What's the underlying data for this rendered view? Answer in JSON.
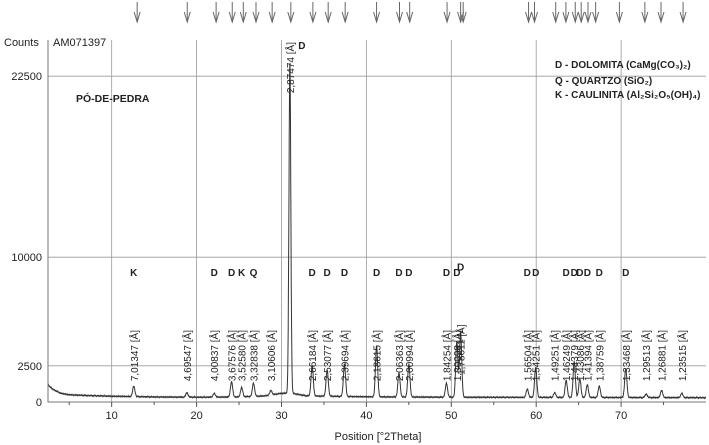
{
  "chart_data": {
    "type": "line",
    "title": "PÓ-DE-PEDRA",
    "sample_id": "AM071397",
    "y_axis_label": "Counts",
    "x_axis_label": "Position [°2Theta]",
    "xlim": [
      2.5,
      80
    ],
    "ylim": [
      0,
      25000
    ],
    "y_ticks": [
      0,
      2500,
      10000,
      22500
    ],
    "x_ticks": [
      10,
      20,
      30,
      40,
      50,
      60,
      70
    ],
    "legend": [
      {
        "code": "D",
        "text": "D - DOLOMITA (CaMg(CO₃)₂)"
      },
      {
        "code": "Q",
        "text": "Q - QUARTZO (SiO₂)"
      },
      {
        "code": "K",
        "text": "K - CAULINITA (Al₂Si₂O₅(OH)₄)"
      }
    ],
    "reference_markers": [
      13.0,
      18.9,
      22.3,
      24.2,
      25.5,
      27.0,
      28.9,
      31.1,
      33.7,
      35.5,
      37.5,
      41.2,
      43.9,
      45.1,
      49.5,
      51.1,
      51.4,
      59.1,
      59.8,
      62.3,
      63.5,
      64.6,
      65.3,
      66.1,
      67.0,
      69.8,
      72.8,
      74.7,
      77.3
    ],
    "peaks": [
      {
        "x": 12.6,
        "y": 1100,
        "d": "7,01347 [Å]",
        "phase": "K"
      },
      {
        "x": 18.86,
        "y": 650,
        "d": "4,69547 [Å]",
        "phase": ""
      },
      {
        "x": 22.08,
        "y": 600,
        "d": "4,00837 [Å]",
        "phase": "D"
      },
      {
        "x": 24.12,
        "y": 1400,
        "d": "3,67576 [Å]",
        "phase": "D"
      },
      {
        "x": 25.31,
        "y": 1000,
        "d": "3,52580 [Å]",
        "phase": "K"
      },
      {
        "x": 26.7,
        "y": 1300,
        "d": "3,32838 [Å]",
        "phase": "Q"
      },
      {
        "x": 28.76,
        "y": 800,
        "d": "3,10606 [Å]",
        "phase": ""
      },
      {
        "x": 30.99,
        "y": 23500,
        "d": "2,87474 [Å]",
        "phase": "D"
      },
      {
        "x": 33.61,
        "y": 2500,
        "d": "2,66184 [Å]",
        "phase": "D"
      },
      {
        "x": 35.38,
        "y": 2200,
        "d": "2,53077 [Å]",
        "phase": "D"
      },
      {
        "x": 37.42,
        "y": 2600,
        "d": "2,39694 [Å]",
        "phase": "D"
      },
      {
        "x": 41.2,
        "y": 3900,
        "d": "2,18615 [Å]",
        "phase": "D"
      },
      {
        "x": 43.84,
        "y": 2000,
        "d": "2,06363 [Å]",
        "phase": "D"
      },
      {
        "x": 45.0,
        "y": 2600,
        "d": "2,00994 [Å]",
        "phase": "D"
      },
      {
        "x": 49.43,
        "y": 1300,
        "d": "1,84254 [Å]",
        "phase": "D"
      },
      {
        "x": 50.65,
        "y": 4200,
        "d": "1,80098 [Å]",
        "phase": "D"
      },
      {
        "x": 51.1,
        "y": 4800,
        "d": "1,78611 [Å]",
        "phase": "D"
      },
      {
        "x": 58.95,
        "y": 900,
        "d": "1,56504 [Å]",
        "phase": "D"
      },
      {
        "x": 59.94,
        "y": 2400,
        "d": "1,54251 [Å]",
        "phase": "D"
      },
      {
        "x": 62.18,
        "y": 650,
        "d": "1,49251 [Å]",
        "phase": ""
      },
      {
        "x": 63.53,
        "y": 1500,
        "d": "1,46249 [Å]",
        "phase": "D"
      },
      {
        "x": 64.48,
        "y": 2800,
        "d": "1,44379 [Å]",
        "phase": "D"
      },
      {
        "x": 65.14,
        "y": 1600,
        "d": "1,43086 [Å]",
        "phase": "D"
      },
      {
        "x": 66.02,
        "y": 1200,
        "d": "1,41394 [Å]",
        "phase": "D"
      },
      {
        "x": 67.43,
        "y": 1100,
        "d": "1,38759 [Å]",
        "phase": "D"
      },
      {
        "x": 70.55,
        "y": 2300,
        "d": "1,33468 [Å]",
        "phase": "D"
      },
      {
        "x": 72.95,
        "y": 550,
        "d": "1,29513 [Å]",
        "phase": ""
      },
      {
        "x": 74.77,
        "y": 800,
        "d": "1,26881 [Å]",
        "phase": ""
      },
      {
        "x": 77.15,
        "y": 600,
        "d": "1,23515 [Å]",
        "phase": ""
      }
    ],
    "background": [
      [
        2.5,
        1200
      ],
      [
        3,
        900
      ],
      [
        4,
        600
      ],
      [
        5,
        500
      ],
      [
        7,
        450
      ],
      [
        10,
        400
      ],
      [
        15,
        350
      ],
      [
        20,
        330
      ],
      [
        25,
        350
      ],
      [
        28,
        420
      ],
      [
        30,
        600
      ],
      [
        31.2,
        600
      ],
      [
        33,
        420
      ],
      [
        40,
        360
      ],
      [
        50,
        330
      ],
      [
        60,
        320
      ],
      [
        70,
        310
      ],
      [
        80,
        300
      ]
    ]
  }
}
